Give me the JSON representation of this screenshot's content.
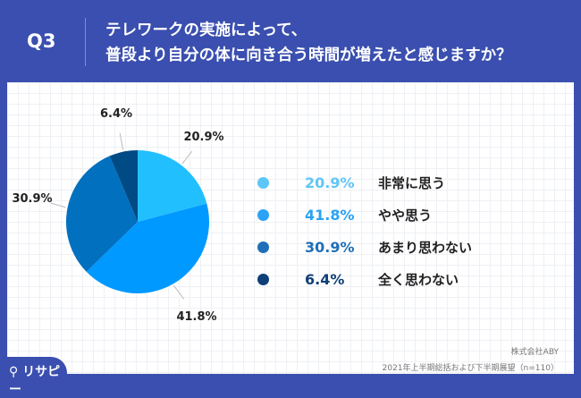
{
  "header": {
    "question": "Q3",
    "title_line1": "テレワークの実施によって、",
    "title_line2": "普段より自分の体に向き合う時間が増えたと感じますか？"
  },
  "chart_data": {
    "type": "pie",
    "categories": [
      "非常に思う",
      "やや思う",
      "あまり思わない",
      "全く思わない"
    ],
    "values": [
      20.9,
      41.8,
      30.9,
      6.4
    ],
    "labels": [
      "20.9%",
      "41.8%",
      "30.9%",
      "6.4%"
    ],
    "slice_colors": [
      "#22bfff",
      "#0099ff",
      "#0070bf",
      "#004a85"
    ],
    "legend_colors": [
      "#5ec6f7",
      "#2aa2f5",
      "#1e6fb8",
      "#0f3f78"
    ],
    "legend_placement": "right"
  },
  "footer": {
    "company": "株式会社ABY",
    "source": "2021年上半期総括および下半期展望（n=110）",
    "logo": "リサピー"
  }
}
